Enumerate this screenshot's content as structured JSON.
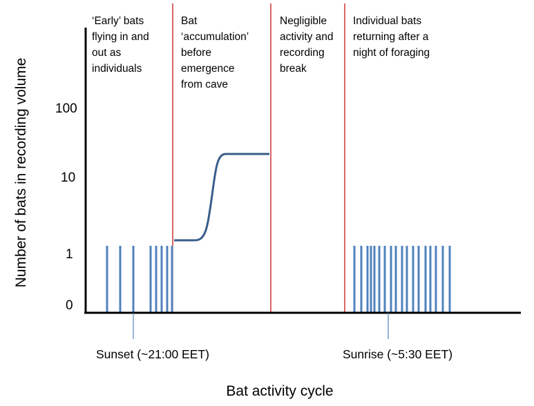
{
  "chart_data": {
    "type": "bar",
    "ylabel": "Number of bats in recording volume",
    "xlabel": "Bat activity cycle",
    "yticks": [
      "100",
      "10",
      "1",
      "0"
    ],
    "y_scale": "log",
    "grid": false,
    "phases": [
      {
        "lines": [
          "‘Early’ bats",
          "flying in and",
          "out as",
          "individuals"
        ]
      },
      {
        "lines": [
          "Bat",
          "‘accumulation’",
          "before",
          "emergence",
          "from cave"
        ]
      },
      {
        "lines": [
          "Negligible",
          "activity  and",
          "recording",
          "break"
        ]
      },
      {
        "lines": [
          "Individual bats",
          "returning after a",
          "night of foraging"
        ]
      }
    ],
    "events": [
      {
        "label": "Sunset (~21:00 EET)"
      },
      {
        "label": "Sunrise  (~5:30 EET)"
      }
    ],
    "bar_value": 1,
    "bar_groups": [
      {
        "phase": 1,
        "count": 9
      },
      {
        "phase": 4,
        "count": 18
      }
    ],
    "accumulation_curve": {
      "start_value": 1.4,
      "end_value": 22
    },
    "colors": {
      "bars": "#4F81BD",
      "curve": "#385D8A",
      "dividers": "#C00000",
      "axes": "#000000"
    }
  }
}
